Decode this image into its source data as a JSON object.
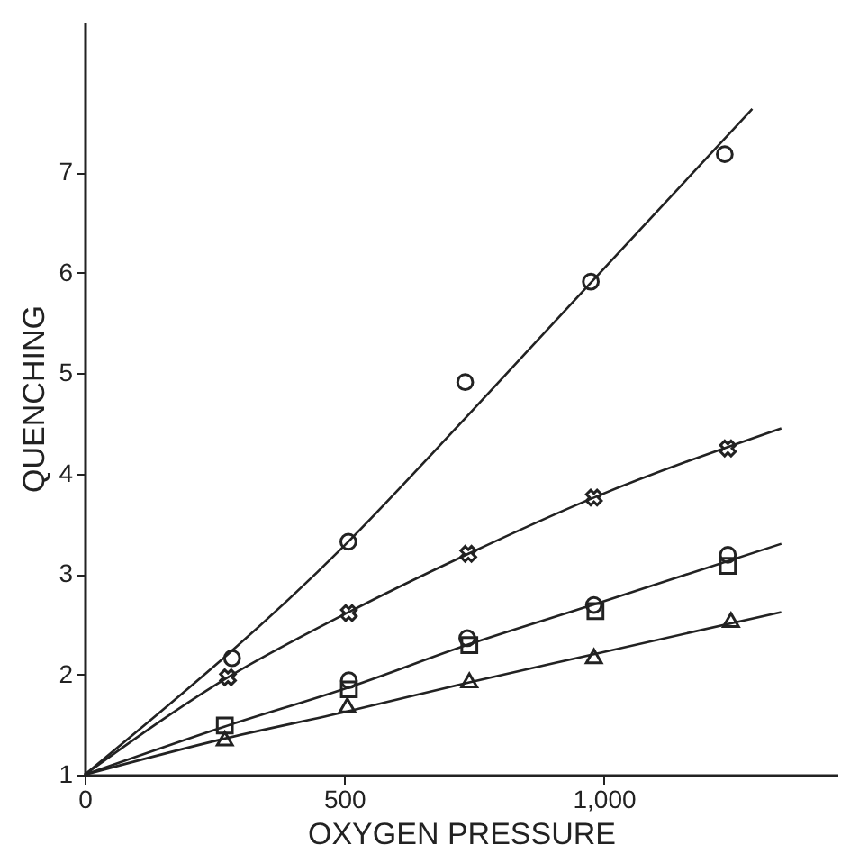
{
  "chart_data": {
    "type": "scatter",
    "xlabel": "OXYGEN PRESSURE",
    "ylabel": "QUENCHING",
    "xlim": [
      0,
      1450
    ],
    "ylim": [
      1,
      8.5
    ],
    "xticks": [
      0,
      500,
      {
        "value": 1000,
        "label": "1,000"
      }
    ],
    "yticks": [
      1,
      2,
      3,
      4,
      5,
      6,
      7
    ],
    "grid": false,
    "series": [
      {
        "marker": "circle",
        "color": "#222222",
        "x": [
          284,
          508,
          733,
          975,
          1233
        ],
        "values": [
          2.16,
          3.32,
          4.91,
          5.91,
          7.18
        ]
      },
      {
        "marker": "cross",
        "color": "#222222",
        "x": [
          276,
          509,
          739,
          981,
          1239
        ],
        "values": [
          1.97,
          2.61,
          3.2,
          3.76,
          4.25
        ]
      },
      {
        "marker": "circle",
        "color": "#222222",
        "x": [
          509,
          737,
          981,
          1239
        ],
        "values": [
          1.94,
          2.36,
          2.69,
          3.19
        ]
      },
      {
        "marker": "square",
        "color": "#222222",
        "x": [
          270,
          509,
          741,
          984,
          1239
        ],
        "values": [
          1.49,
          1.85,
          2.29,
          2.63,
          3.08
        ]
      },
      {
        "marker": "triangle",
        "color": "#222222",
        "x": [
          270,
          506,
          741,
          981,
          1245
        ],
        "values": [
          1.36,
          1.69,
          1.94,
          2.18,
          2.54
        ]
      },
      {
        "type": "line",
        "marker": "none",
        "line_style": "solid",
        "color": "#222222",
        "x": [
          0,
          500,
          733,
          975,
          1286
        ],
        "values": [
          1,
          3.28,
          4.55,
          5.9,
          7.63
        ]
      },
      {
        "type": "line",
        "marker": "none",
        "line_style": "solid",
        "color": "#222222",
        "x": [
          0,
          276,
          509,
          739,
          981,
          1342
        ],
        "values": [
          1,
          1.97,
          2.62,
          3.2,
          3.76,
          4.45
        ]
      },
      {
        "type": "line",
        "marker": "none",
        "line_style": "solid",
        "color": "#222222",
        "x": [
          0,
          270,
          509,
          741,
          984,
          1342
        ],
        "values": [
          1,
          1.48,
          1.87,
          2.3,
          2.7,
          3.3
        ]
      },
      {
        "type": "line",
        "marker": "none",
        "line_style": "solid",
        "color": "#222222",
        "x": [
          0,
          270,
          506,
          741,
          981,
          1342
        ],
        "values": [
          1,
          1.36,
          1.63,
          1.92,
          2.2,
          2.62
        ]
      }
    ]
  }
}
